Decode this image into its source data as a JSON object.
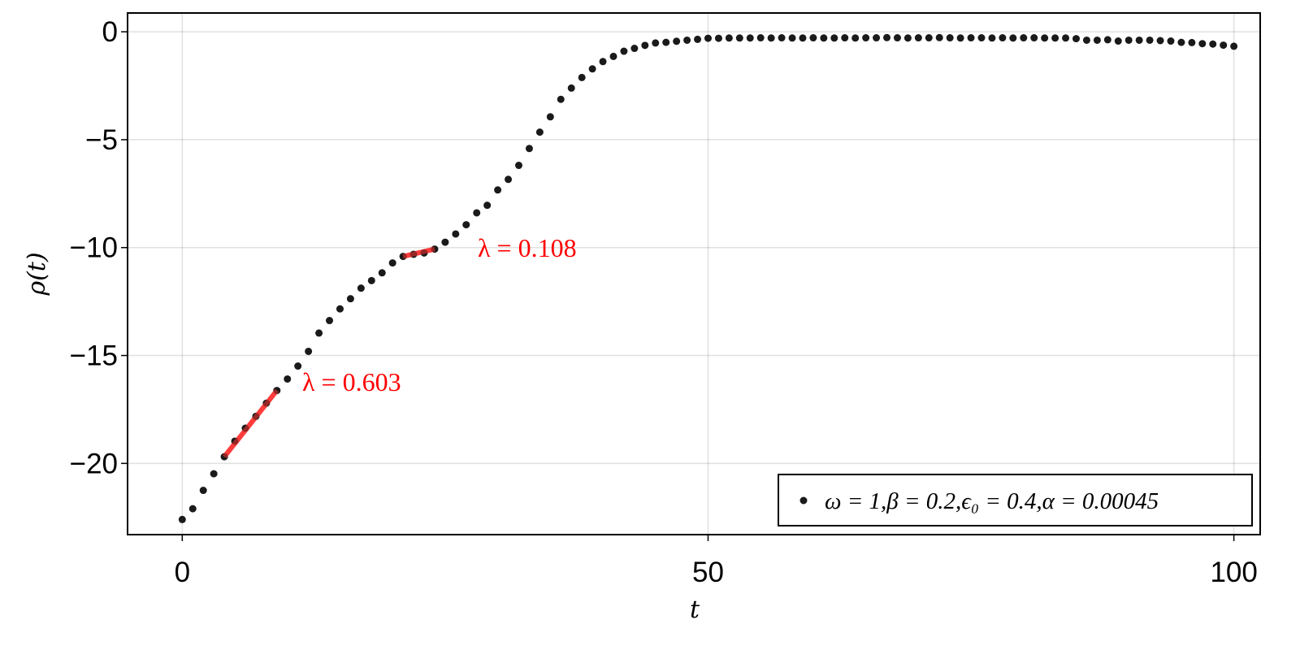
{
  "chart_data": {
    "type": "scatter",
    "title": "",
    "xlabel": "t",
    "ylabel": "ρ(t)",
    "xlim": [
      -5.2,
      102.5
    ],
    "ylim": [
      -23.3,
      0.87
    ],
    "grid": true,
    "x_ticks": [
      {
        "value": 0,
        "label": "0"
      },
      {
        "value": 50,
        "label": "50"
      },
      {
        "value": 100,
        "label": "100"
      }
    ],
    "y_ticks": [
      {
        "value": 0,
        "label": "0"
      },
      {
        "value": -5,
        "label": "−5"
      },
      {
        "value": -10,
        "label": "−10"
      },
      {
        "value": -15,
        "label": "−15"
      },
      {
        "value": -20,
        "label": "−20"
      }
    ],
    "legend_position": "bottom-right",
    "series": [
      {
        "name": "ω = 1,β = 0.2,ϵ₀ = 0.4,α = 0.00045",
        "color": "#1a1a1a",
        "x": [
          0,
          1,
          2,
          3,
          4,
          5,
          6,
          7,
          8,
          9,
          10,
          11,
          12,
          13,
          14,
          15,
          16,
          17,
          18,
          19,
          20,
          21,
          22,
          23,
          24,
          25,
          26,
          27,
          28,
          29,
          30,
          31,
          32,
          33,
          34,
          35,
          36,
          37,
          38,
          39,
          40,
          41,
          42,
          43,
          44,
          45,
          46,
          47,
          48,
          49,
          50,
          51,
          52,
          53,
          54,
          55,
          56,
          57,
          58,
          59,
          60,
          61,
          62,
          63,
          64,
          65,
          66,
          67,
          68,
          69,
          70,
          71,
          72,
          73,
          74,
          75,
          76,
          77,
          78,
          79,
          80,
          81,
          82,
          83,
          84,
          85,
          86,
          87,
          88,
          89,
          90,
          91,
          92,
          93,
          94,
          95,
          96,
          97,
          98,
          99,
          100
        ],
        "y": [
          -22.6,
          -22.1,
          -21.25,
          -20.48,
          -19.69,
          -18.97,
          -18.37,
          -17.82,
          -17.21,
          -16.62,
          -16.09,
          -15.49,
          -14.81,
          -13.96,
          -13.38,
          -12.84,
          -12.37,
          -11.88,
          -11.53,
          -11.17,
          -10.71,
          -10.41,
          -10.31,
          -10.25,
          -10.07,
          -9.75,
          -9.37,
          -8.94,
          -8.39,
          -8.04,
          -7.33,
          -6.84,
          -6.19,
          -5.41,
          -4.65,
          -3.94,
          -3.13,
          -2.61,
          -2.12,
          -1.72,
          -1.38,
          -1.14,
          -0.9,
          -0.77,
          -0.63,
          -0.52,
          -0.49,
          -0.44,
          -0.39,
          -0.35,
          -0.3,
          -0.3,
          -0.29,
          -0.29,
          -0.29,
          -0.28,
          -0.29,
          -0.28,
          -0.29,
          -0.29,
          -0.28,
          -0.29,
          -0.29,
          -0.28,
          -0.29,
          -0.28,
          -0.28,
          -0.27,
          -0.28,
          -0.29,
          -0.28,
          -0.28,
          -0.27,
          -0.28,
          -0.29,
          -0.28,
          -0.28,
          -0.29,
          -0.28,
          -0.29,
          -0.28,
          -0.28,
          -0.29,
          -0.29,
          -0.29,
          -0.32,
          -0.39,
          -0.39,
          -0.37,
          -0.43,
          -0.39,
          -0.39,
          -0.39,
          -0.41,
          -0.43,
          -0.49,
          -0.5,
          -0.55,
          -0.57,
          -0.62,
          -0.67
        ]
      }
    ],
    "fits": [
      {
        "label": "λ = 0.603",
        "slope": 0.603,
        "x": [
          4,
          9
        ],
        "y": [
          -19.69,
          -16.62
        ],
        "color": "#ff3333"
      },
      {
        "label": "λ = 0.108",
        "slope": 0.108,
        "x": [
          21,
          24
        ],
        "y": [
          -10.41,
          -10.07
        ],
        "color": "#ff3333"
      }
    ]
  }
}
